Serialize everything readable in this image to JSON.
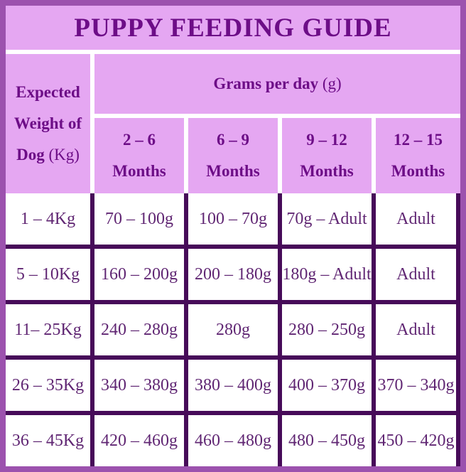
{
  "title": "PUPPY FEEDING GUIDE",
  "colors": {
    "outer_border": "#9c52ae",
    "header_bg": "#e5a7f2",
    "grid_dark": "#470b59",
    "header_text": "#6d0d87",
    "data_text": "#602673",
    "cell_bg": "#ffffff"
  },
  "table": {
    "weight_header_main": "Expected Weight of Dog ",
    "weight_header_unit": "(Kg)",
    "grams_header_main": "Grams per day ",
    "grams_header_unit": "(g)",
    "age_columns": [
      "2 – 6 Months",
      "6 – 9 Months",
      "9 – 12 Months",
      "12 – 15 Months"
    ],
    "rows": [
      {
        "weight": "1 – 4Kg",
        "values": [
          "70 – 100g",
          "100 – 70g",
          "70g – Adult",
          "Adult"
        ]
      },
      {
        "weight": "5 – 10Kg",
        "values": [
          "160 – 200g",
          "200 – 180g",
          "180g – Adult",
          "Adult"
        ]
      },
      {
        "weight": "11– 25Kg",
        "values": [
          "240 – 280g",
          "280g",
          "280 – 250g",
          "Adult"
        ]
      },
      {
        "weight": "26 – 35Kg",
        "values": [
          "340 – 380g",
          "380 – 400g",
          "400 – 370g",
          "370 – 340g"
        ]
      },
      {
        "weight": "36 – 45Kg",
        "values": [
          "420 – 460g",
          "460 – 480g",
          "480 – 450g",
          "450 – 420g"
        ]
      }
    ]
  }
}
